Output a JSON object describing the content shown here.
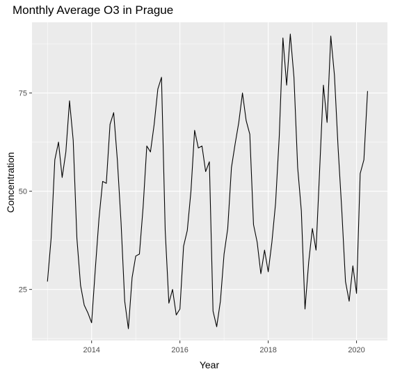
{
  "chart_data": {
    "type": "line",
    "title": "Monthly Average O3 in Prague",
    "xlabel": "Year",
    "ylabel": "Concentration",
    "xlim": [
      2012.65,
      2020.7
    ],
    "ylim": [
      12,
      93
    ],
    "x_ticks": [
      2014,
      2016,
      2018,
      2020
    ],
    "y_ticks": [
      25,
      50,
      75
    ],
    "grid": true,
    "background": "#ebebeb",
    "grid_color": "#ffffff",
    "line_color": "#000000",
    "series": [
      {
        "x": [
          2013.0,
          2013.083,
          2013.167,
          2013.25,
          2013.333,
          2013.417,
          2013.5,
          2013.583,
          2013.667,
          2013.75,
          2013.833,
          2013.917,
          2014.0,
          2014.083,
          2014.167,
          2014.25,
          2014.333,
          2014.417,
          2014.5,
          2014.583,
          2014.667,
          2014.75,
          2014.833,
          2014.917,
          2015.0,
          2015.083,
          2015.167,
          2015.25,
          2015.333,
          2015.417,
          2015.5,
          2015.583,
          2015.667,
          2015.75,
          2015.833,
          2015.917,
          2016.0,
          2016.083,
          2016.167,
          2016.25,
          2016.333,
          2016.417,
          2016.5,
          2016.583,
          2016.667,
          2016.75,
          2016.833,
          2016.917,
          2017.0,
          2017.083,
          2017.167,
          2017.25,
          2017.333,
          2017.417,
          2017.5,
          2017.583,
          2017.667,
          2017.75,
          2017.833,
          2017.917,
          2018.0,
          2018.083,
          2018.167,
          2018.25,
          2018.333,
          2018.417,
          2018.5,
          2018.583,
          2018.667,
          2018.75,
          2018.833,
          2018.917,
          2019.0,
          2019.083,
          2019.167,
          2019.25,
          2019.333,
          2019.417,
          2019.5,
          2019.583,
          2019.667,
          2019.75,
          2019.833,
          2019.917,
          2020.0,
          2020.083,
          2020.167,
          2020.25
        ],
        "values": [
          27,
          38,
          58,
          62.5,
          53.5,
          60,
          73,
          63,
          38,
          26,
          21,
          19,
          16.5,
          30,
          43,
          52.5,
          52,
          67,
          70,
          58,
          42,
          22,
          15,
          28,
          33.5,
          34,
          46,
          61.5,
          60,
          67,
          76,
          79,
          40,
          21.5,
          25,
          18.5,
          20,
          36,
          40,
          50,
          65.5,
          61,
          61.5,
          55,
          57.5,
          19.5,
          15.5,
          22,
          34,
          40.5,
          56,
          62,
          67.5,
          75,
          68,
          64.5,
          41.5,
          37,
          29,
          35,
          29.5,
          37,
          47,
          64,
          89,
          77,
          90,
          79,
          56,
          45,
          20,
          32,
          40.5,
          35,
          56,
          77,
          67.5,
          89.5,
          79.5,
          61,
          45,
          27,
          22,
          31,
          24,
          54.5,
          58,
          75.5
        ]
      }
    ]
  }
}
